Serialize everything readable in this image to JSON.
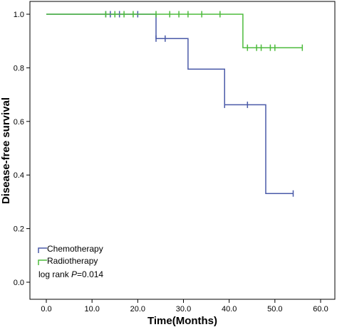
{
  "chart_data": {
    "type": "line",
    "subtype": "kaplan-meier-step",
    "title": "",
    "xlabel": "Time(Months)",
    "ylabel": "Disease-free survival",
    "xlim": [
      0,
      60
    ],
    "ylim": [
      0,
      1
    ],
    "x_ticks": [
      "0.0",
      "10.0",
      "20.0",
      "30.0",
      "40.0",
      "50.0",
      "60.0"
    ],
    "y_ticks": [
      "0.0",
      "0.2",
      "0.4",
      "0.6",
      "0.8",
      "1.0"
    ],
    "grid": false,
    "legend_position": "bottom-left",
    "series": [
      {
        "name": "Chemotherapy",
        "color": "#4a5aa8",
        "steps": [
          [
            0,
            1.0
          ],
          [
            24,
            0.909
          ],
          [
            31,
            0.795
          ],
          [
            39,
            0.662
          ],
          [
            48,
            0.331
          ],
          [
            54,
            0.331
          ]
        ],
        "censored": [
          [
            13,
            1.0
          ],
          [
            14,
            1.0
          ],
          [
            15,
            1.0
          ],
          [
            16,
            1.0
          ],
          [
            20,
            1.0
          ],
          [
            24,
            0.909
          ],
          [
            26,
            0.909
          ],
          [
            39,
            0.662
          ],
          [
            44,
            0.662
          ],
          [
            54,
            0.331
          ]
        ]
      },
      {
        "name": "Radiotherapy",
        "color": "#4dbb3c",
        "steps": [
          [
            0,
            1.0
          ],
          [
            43,
            0.875
          ],
          [
            56,
            0.875
          ]
        ],
        "censored": [
          [
            13,
            1.0
          ],
          [
            15,
            1.0
          ],
          [
            17,
            1.0
          ],
          [
            19,
            1.0
          ],
          [
            24,
            1.0
          ],
          [
            27,
            1.0
          ],
          [
            29,
            1.0
          ],
          [
            31,
            1.0
          ],
          [
            34,
            1.0
          ],
          [
            38,
            1.0
          ],
          [
            44,
            0.875
          ],
          [
            46,
            0.875
          ],
          [
            47,
            0.875
          ],
          [
            49,
            0.875
          ],
          [
            50,
            0.875
          ],
          [
            56,
            0.875
          ]
        ]
      }
    ],
    "annotation": {
      "prefix": "log rank ",
      "italic": "P",
      "suffix": "=0.014"
    }
  }
}
